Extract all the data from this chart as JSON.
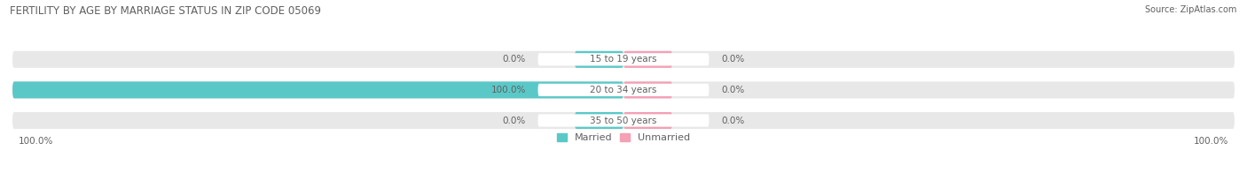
{
  "title": "FERTILITY BY AGE BY MARRIAGE STATUS IN ZIP CODE 05069",
  "source": "Source: ZipAtlas.com",
  "categories": [
    "15 to 19 years",
    "20 to 34 years",
    "35 to 50 years"
  ],
  "married_values": [
    0.0,
    100.0,
    0.0
  ],
  "unmarried_values": [
    0.0,
    0.0,
    0.0
  ],
  "married_color": "#5BC8C8",
  "unmarried_color": "#F4A0B5",
  "bar_bg_color": "#E8E8E8",
  "background_color": "#FFFFFF",
  "title_color": "#606060",
  "text_color": "#606060",
  "title_fontsize": 8.5,
  "source_fontsize": 7,
  "label_fontsize": 7.5,
  "category_fontsize": 7.5,
  "legend_fontsize": 8,
  "axis_label_fontsize": 7.5
}
